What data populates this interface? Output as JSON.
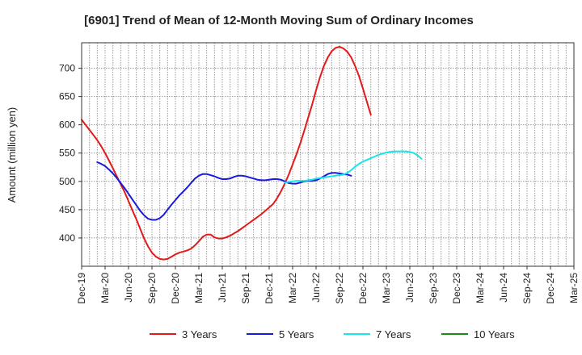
{
  "chart_data": {
    "type": "line",
    "title": "[6901]  Trend of Mean of 12-Month Moving Sum of Ordinary Incomes",
    "xlabel": "",
    "ylabel": "Amount (million yen)",
    "ylim": [
      350,
      745
    ],
    "yticks": [
      400,
      450,
      500,
      550,
      600,
      650,
      700
    ],
    "grid": true,
    "legend_position": "bottom",
    "x_tick_labels": [
      "Dec-19",
      "Mar-20",
      "Jun-20",
      "Sep-20",
      "Dec-20",
      "Mar-21",
      "Jun-21",
      "Sep-21",
      "Dec-21",
      "Mar-22",
      "Jun-22",
      "Sep-22",
      "Dec-22",
      "Mar-23",
      "Jun-23",
      "Sep-23",
      "Dec-23",
      "Mar-24",
      "Jun-24",
      "Sep-24",
      "Dec-24",
      "Mar-25"
    ],
    "x_range_months": [
      0,
      63
    ],
    "series": [
      {
        "name": "3 Years",
        "color": "#e31a1c",
        "start_month": 0,
        "values": [
          609,
          600,
          591,
          582,
          573,
          562,
          550,
          537,
          523,
          509,
          495,
          481,
          465,
          449,
          433,
          416,
          399,
          385,
          374,
          367,
          363,
          362,
          363,
          367,
          371,
          374,
          376,
          378,
          381,
          387,
          394,
          402,
          406,
          406,
          401,
          399,
          399,
          401,
          404,
          408,
          412,
          417,
          422,
          427,
          432,
          437,
          442,
          448,
          454,
          460,
          470,
          482,
          496,
          512,
          530,
          548,
          568,
          590,
          613,
          636,
          661,
          684,
          704,
          719,
          730,
          736,
          738,
          735,
          729,
          719,
          704,
          686,
          664,
          641,
          618
        ]
      },
      {
        "name": "5 Years",
        "color": "#1a1adc",
        "start_month": 2,
        "values": [
          534,
          531,
          527,
          521,
          514,
          506,
          497,
          488,
          478,
          468,
          458,
          448,
          440,
          434,
          432,
          432,
          435,
          441,
          450,
          459,
          467,
          475,
          482,
          489,
          497,
          505,
          510,
          513,
          513,
          511,
          509,
          506,
          504,
          504,
          505,
          508,
          510,
          510,
          509,
          507,
          505,
          503,
          502,
          502,
          503,
          504,
          504,
          503,
          500,
          497,
          496,
          496,
          498,
          500,
          501,
          501,
          502,
          505,
          509,
          513,
          515,
          515,
          514,
          513,
          512,
          510
        ]
      },
      {
        "name": "7 Years",
        "color": "#19e5e5",
        "start_month": 26,
        "values": [
          498,
          499,
          500,
          501,
          501,
          501,
          502,
          503,
          505,
          506,
          507,
          508,
          509,
          510,
          511,
          512,
          515,
          520,
          526,
          531,
          535,
          538,
          541,
          544,
          547,
          549,
          551,
          552,
          553,
          553,
          553,
          553,
          552,
          550,
          546,
          540
        ]
      },
      {
        "name": "10 Years",
        "color": "#1a8a1a",
        "start_month": 0,
        "values": []
      }
    ]
  }
}
